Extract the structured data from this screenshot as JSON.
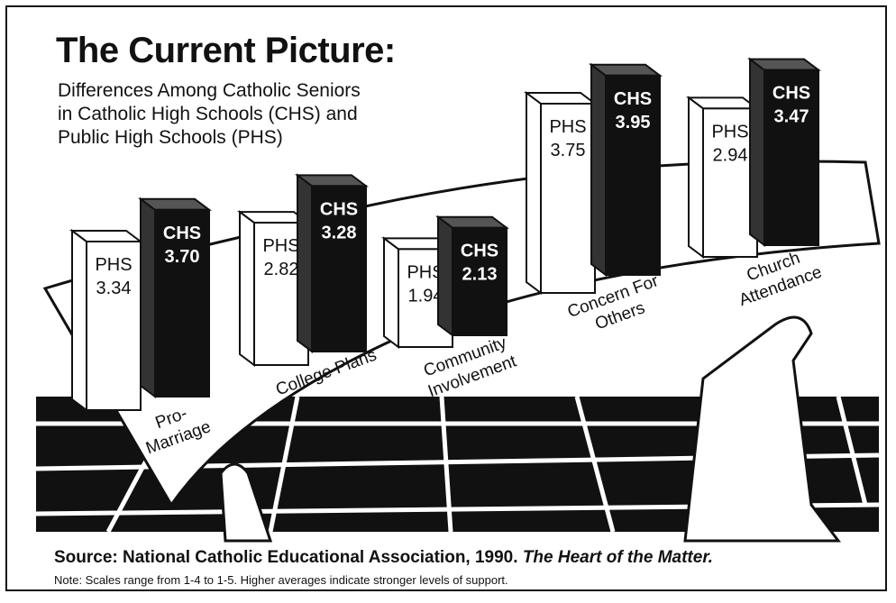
{
  "chart_data": {
    "type": "bar3d",
    "title": "The Current Picture:",
    "subtitle": "Differences Among Catholic Seniors in Catholic High Schools (CHS) and Public High Schools (PHS)",
    "categories": [
      "Pro-Marriage",
      "College Plans",
      "Community Involvement",
      "Concern For Others",
      "Church Attendance"
    ],
    "series": [
      {
        "name": "PHS",
        "color": "#ffffff",
        "values": [
          3.34,
          2.82,
          1.94,
          3.75,
          2.94
        ],
        "value_labels": [
          "3.34",
          "2.82",
          "1.94",
          "3.75",
          "2.94"
        ]
      },
      {
        "name": "CHS",
        "color": "#111111",
        "values": [
          3.7,
          3.28,
          2.13,
          3.95,
          3.47
        ],
        "value_labels": [
          "3.70",
          "3.28",
          "2.13",
          "3.95",
          "3.47"
        ]
      }
    ],
    "source": "Source: National Catholic Educational Association, 1990.",
    "source_work": "The Heart of the Matter.",
    "note": "Note: Scales range from 1-4 to 1-5. Higher averages indicate stronger levels of support."
  }
}
